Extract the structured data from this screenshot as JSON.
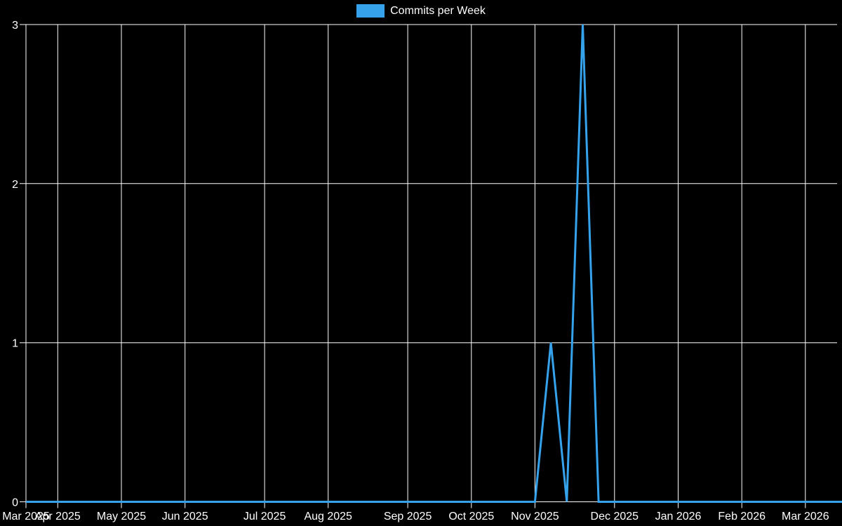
{
  "legend": {
    "label": "Commits per Week",
    "swatch_color": "#36A2EB"
  },
  "chart_data": {
    "type": "line",
    "title": "Commits per Week",
    "xlabel": "",
    "ylabel": "",
    "background_color": "#000000",
    "grid_color": "#ffffff",
    "text_color": "#ffffff",
    "grid": true,
    "legend_position": "top-center",
    "ylim": [
      0,
      3
    ],
    "y_ticks": [
      0,
      1,
      2,
      3
    ],
    "x_ticks": [
      {
        "label": "Mar 2025",
        "week": 0
      },
      {
        "label": "Apr 2025",
        "week": 2
      },
      {
        "label": "May 2025",
        "week": 6
      },
      {
        "label": "Jun 2025",
        "week": 10
      },
      {
        "label": "Jul 2025",
        "week": 15
      },
      {
        "label": "Aug 2025",
        "week": 19
      },
      {
        "label": "Sep 2025",
        "week": 24
      },
      {
        "label": "Oct 2025",
        "week": 28
      },
      {
        "label": "Nov 2025",
        "week": 32
      },
      {
        "label": "Dec 2025",
        "week": 37
      },
      {
        "label": "Jan 2026",
        "week": 41
      },
      {
        "label": "Feb 2026",
        "week": 45
      },
      {
        "label": "Mar 2026",
        "week": 49
      }
    ],
    "series": [
      {
        "name": "Commits per Week",
        "color": "#36A2EB",
        "line_width": 3,
        "values": [
          0,
          0,
          0,
          0,
          0,
          0,
          0,
          0,
          0,
          0,
          0,
          0,
          0,
          0,
          0,
          0,
          0,
          0,
          0,
          0,
          0,
          0,
          0,
          0,
          0,
          0,
          0,
          0,
          0,
          0,
          0,
          0,
          0,
          1,
          0,
          3,
          0,
          0,
          0,
          0,
          0,
          0,
          0,
          0,
          0,
          0,
          0,
          0,
          0,
          0,
          0,
          0,
          0
        ]
      }
    ]
  }
}
